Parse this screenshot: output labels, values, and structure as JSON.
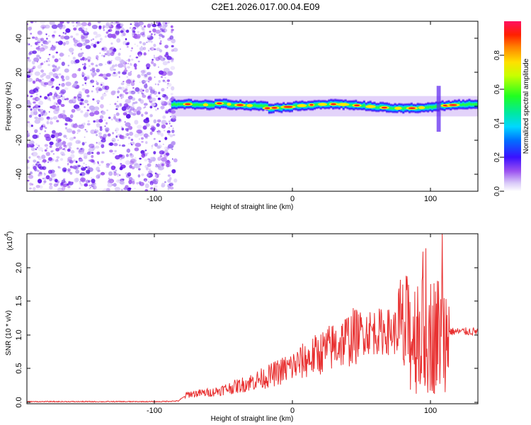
{
  "figure": {
    "title": "C2E1.2026.017.00.04.E09"
  },
  "chart_data": [
    {
      "type": "heatmap",
      "title": "C2E1.2026.017.00.04.E09",
      "xlabel": "Height of straight line (km)",
      "ylabel": "Frequency (Hz)",
      "xlim": [
        -195,
        133
      ],
      "ylim": [
        -50,
        50
      ],
      "xticks": [
        "-100",
        "0",
        "100"
      ],
      "yticks": [
        "-40",
        "-20",
        "0",
        "20",
        "40"
      ],
      "colorbar": {
        "label": "Normalized spectral amplitude",
        "range": [
          0.0,
          1.0
        ],
        "ticks": [
          "0.0",
          "0.2",
          "0.4",
          "0.6",
          "0.8"
        ]
      },
      "regions": [
        {
          "x": [
            -195,
            -90
          ],
          "description": "scattered low-amplitude noise",
          "amplitude": [
            0.05,
            0.25
          ]
        },
        {
          "x": [
            -90,
            133
          ],
          "freq_center": 0,
          "freq_halfwidth": 3,
          "amplitude": [
            0.3,
            1.0
          ]
        }
      ]
    },
    {
      "type": "line",
      "xlabel": "Height of straight line (km)",
      "ylabel": "SNR (10 * v/v)",
      "yscale_label": "(x10",
      "yscale_exp": "4",
      "xlim": [
        -195,
        133
      ],
      "ylim": [
        0,
        2.5
      ],
      "xticks": [
        "-100",
        "0",
        "100"
      ],
      "yticks": [
        "0.0",
        "0.5",
        "1.0",
        "1.5",
        "2.0"
      ],
      "series": [
        {
          "color": "#e83030",
          "envelope": [
            {
              "x": -195,
              "y": 0.01
            },
            {
              "x": -100,
              "y": 0.01
            },
            {
              "x": -85,
              "y": 0.02
            },
            {
              "x": -78,
              "y": 0.12
            },
            {
              "x": -60,
              "y": 0.15
            },
            {
              "x": -40,
              "y": 0.25
            },
            {
              "x": -20,
              "y": 0.38
            },
            {
              "x": 0,
              "y": 0.55
            },
            {
              "x": 20,
              "y": 0.75
            },
            {
              "x": 40,
              "y": 0.95
            },
            {
              "x": 50,
              "y": 1.05
            },
            {
              "x": 70,
              "y": 1.05
            },
            {
              "x": 85,
              "y": 1.0
            },
            {
              "x": 100,
              "y": 1.0
            },
            {
              "x": 110,
              "y": 1.05
            },
            {
              "x": 120,
              "y": 1.05
            },
            {
              "x": 133,
              "y": 1.05
            }
          ],
          "peak": {
            "x": 107,
            "y": 2.5
          }
        }
      ]
    }
  ]
}
